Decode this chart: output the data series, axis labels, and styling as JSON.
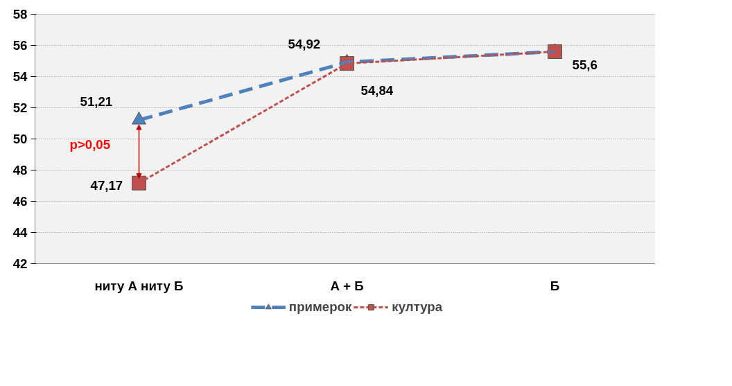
{
  "chart_data": {
    "type": "line",
    "categories": [
      "ниту А ниту Б",
      "А + Б",
      "Б"
    ],
    "series": [
      {
        "name": "примерок",
        "color": "#4f81bd",
        "values": [
          51.21,
          54.92,
          55.6
        ],
        "value_labels": [
          "51,21",
          "54,92",
          "55,6"
        ],
        "marker": "triangle",
        "line_style": "dashed"
      },
      {
        "name": "култура",
        "color": "#c0504d",
        "values": [
          47.17,
          54.84,
          55.6
        ],
        "value_labels": [
          "47,17",
          "54,84",
          null
        ],
        "marker": "square",
        "line_style": "dotted"
      }
    ],
    "ylim": [
      42,
      58
    ],
    "yticks": [
      42,
      44,
      46,
      48,
      50,
      52,
      54,
      56,
      58
    ],
    "grid": "y",
    "legend": "bottom",
    "annotations": [
      "p>0,05"
    ]
  }
}
